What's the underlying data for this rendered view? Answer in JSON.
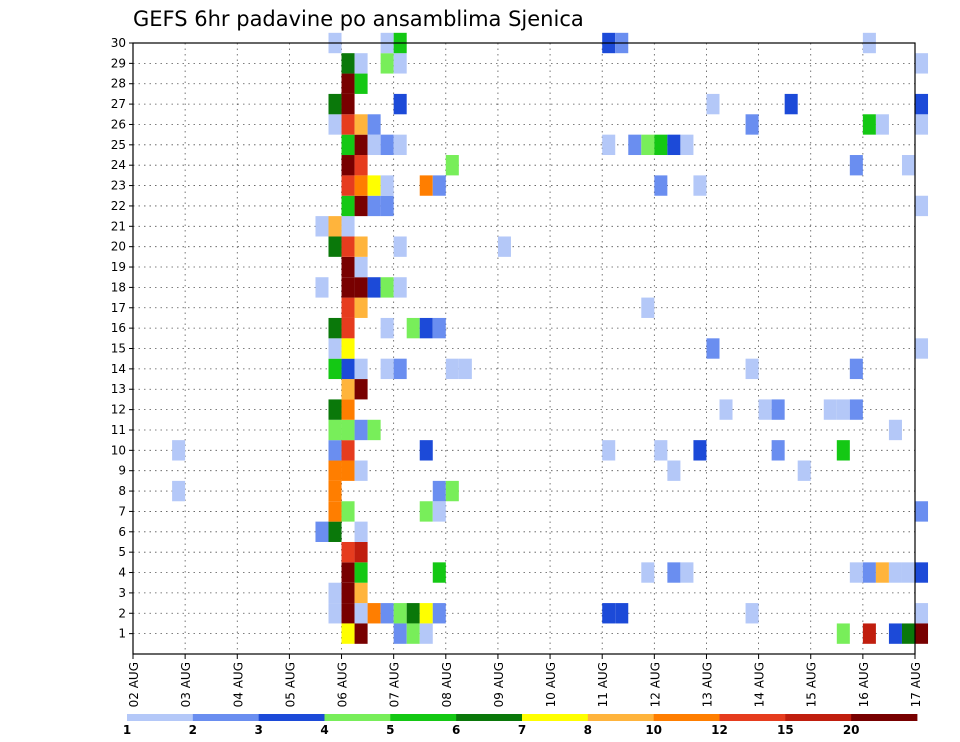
{
  "chart_data": {
    "type": "heatmap",
    "title": "GEFS 6hr padavine po ansamblima Sjenica",
    "xlabel": "",
    "ylabel": "",
    "x_start": "02 AUG 00Z",
    "x_step_hours": 6,
    "x_ticks": [
      "02 AUG",
      "03 AUG",
      "04 AUG",
      "05 AUG",
      "06 AUG",
      "07 AUG",
      "08 AUG",
      "09 AUG",
      "10 AUG",
      "11 AUG",
      "12 AUG",
      "13 AUG",
      "14 AUG",
      "15 AUG",
      "16 AUG",
      "17 AUG"
    ],
    "y_ticks": [
      "1",
      "2",
      "3",
      "4",
      "5",
      "6",
      "7",
      "8",
      "9",
      "10",
      "11",
      "12",
      "13",
      "14",
      "15",
      "16",
      "17",
      "18",
      "19",
      "20",
      "21",
      "22",
      "23",
      "24",
      "25",
      "26",
      "27",
      "28",
      "29",
      "30"
    ],
    "ylim": [
      0,
      30
    ],
    "grid": true,
    "colorbar": {
      "labels": [
        "1",
        "2",
        "3",
        "4",
        "5",
        "6",
        "7",
        "8",
        "10",
        "12",
        "15",
        "20"
      ],
      "colors": [
        "#b4c8f8",
        "#6a8ef0",
        "#1c4ad8",
        "#78ee5a",
        "#14c814",
        "#0a780a",
        "#ffff00",
        "#ffb43c",
        "#ff7e00",
        "#e63c1e",
        "#c01e0e",
        "#780000"
      ]
    },
    "cells": [
      [
        1,
        "11 AUG 00Z",
        "#1c4ad8"
      ],
      [
        1,
        "11 AUG 06Z",
        "#1c4ad8"
      ],
      [
        1,
        "05 AUG 18Z",
        "#b4c8f8"
      ],
      [
        1,
        "06 AUG 00Z",
        "#780000"
      ],
      [
        1,
        "06 AUG 06Z",
        "#b4c8f8"
      ],
      [
        1,
        "06 AUG 12Z",
        "#ff7e00"
      ],
      [
        1,
        "06 AUG 18Z",
        "#6a8ef0"
      ],
      [
        1,
        "07 AUG 00Z",
        "#78ee5a"
      ],
      [
        1,
        "07 AUG 06Z",
        "#0a780a"
      ],
      [
        1,
        "07 AUG 12Z",
        "#ffff00"
      ],
      [
        1,
        "07 AUG 18Z",
        "#6a8ef0"
      ],
      [
        1,
        "13 AUG 18Z",
        "#b4c8f8"
      ],
      [
        1,
        "17 AUG 00Z",
        "#b4c8f8"
      ],
      [
        2,
        "05 AUG 18Z",
        "#b4c8f8"
      ],
      [
        2,
        "06 AUG 00Z",
        "#780000"
      ],
      [
        2,
        "06 AUG 06Z",
        "#ffb43c"
      ],
      [
        3,
        "06 AUG 00Z",
        "#780000"
      ],
      [
        3,
        "06 AUG 06Z",
        "#14c814"
      ],
      [
        3,
        "07 AUG 18Z",
        "#14c814"
      ],
      [
        3,
        "11 AUG 18Z",
        "#b4c8f8"
      ],
      [
        3,
        "12 AUG 06Z",
        "#6a8ef0"
      ],
      [
        3,
        "12 AUG 12Z",
        "#b4c8f8"
      ],
      [
        3,
        "15 AUG 18Z",
        "#b4c8f8"
      ],
      [
        3,
        "16 AUG 00Z",
        "#6a8ef0"
      ],
      [
        3,
        "16 AUG 06Z",
        "#ffb43c"
      ],
      [
        3,
        "16 AUG 12Z",
        "#b4c8f8"
      ],
      [
        3,
        "16 AUG 18Z",
        "#b4c8f8"
      ],
      [
        3,
        "17 AUG 00Z",
        "#1c4ad8"
      ],
      [
        4,
        "06 AUG 00Z",
        "#e63c1e"
      ],
      [
        4,
        "06 AUG 06Z",
        "#c01e0e"
      ],
      [
        5,
        "05 AUG 12Z",
        "#6a8ef0"
      ],
      [
        5,
        "05 AUG 18Z",
        "#0a780a"
      ],
      [
        5,
        "06 AUG 06Z",
        "#b4c8f8"
      ],
      [
        6,
        "05 AUG 18Z",
        "#ff7e00"
      ],
      [
        6,
        "06 AUG 00Z",
        "#78ee5a"
      ],
      [
        6,
        "07 AUG 12Z",
        "#78ee5a"
      ],
      [
        6,
        "07 AUG 18Z",
        "#b4c8f8"
      ],
      [
        6,
        "17 AUG 00Z",
        "#6a8ef0"
      ],
      [
        7,
        "02 AUG 18Z",
        "#b4c8f8"
      ],
      [
        7,
        "05 AUG 18Z",
        "#ff7e00"
      ],
      [
        7,
        "07 AUG 18Z",
        "#6a8ef0"
      ],
      [
        7,
        "08 AUG 00Z",
        "#78ee5a"
      ],
      [
        8,
        "05 AUG 18Z",
        "#ff7e00"
      ],
      [
        8,
        "06 AUG 00Z",
        "#ff7e00"
      ],
      [
        8,
        "06 AUG 06Z",
        "#b4c8f8"
      ],
      [
        8,
        "12 AUG 06Z",
        "#b4c8f8"
      ],
      [
        8,
        "14 AUG 18Z",
        "#b4c8f8"
      ],
      [
        9,
        "02 AUG 18Z",
        "#b4c8f8"
      ],
      [
        9,
        "05 AUG 18Z",
        "#6a8ef0"
      ],
      [
        9,
        "06 AUG 00Z",
        "#e63c1e"
      ],
      [
        9,
        "07 AUG 12Z",
        "#1c4ad8"
      ],
      [
        9,
        "11 AUG 00Z",
        "#b4c8f8"
      ],
      [
        9,
        "12 AUG 00Z",
        "#b4c8f8"
      ],
      [
        9,
        "12 AUG 18Z",
        "#1c4ad8"
      ],
      [
        9,
        "14 AUG 06Z",
        "#6a8ef0"
      ],
      [
        9,
        "15 AUG 12Z",
        "#14c814"
      ],
      [
        10,
        "05 AUG 18Z",
        "#78ee5a"
      ],
      [
        10,
        "06 AUG 00Z",
        "#78ee5a"
      ],
      [
        10,
        "06 AUG 06Z",
        "#6a8ef0"
      ],
      [
        10,
        "06 AUG 12Z",
        "#78ee5a"
      ],
      [
        10,
        "16 AUG 12Z",
        "#b4c8f8"
      ],
      [
        11,
        "05 AUG 18Z",
        "#0a780a"
      ],
      [
        11,
        "06 AUG 00Z",
        "#ff7e00"
      ],
      [
        11,
        "13 AUG 06Z",
        "#b4c8f8"
      ],
      [
        11,
        "14 AUG 00Z",
        "#b4c8f8"
      ],
      [
        11,
        "14 AUG 06Z",
        "#6a8ef0"
      ],
      [
        11,
        "15 AUG 06Z",
        "#b4c8f8"
      ],
      [
        11,
        "15 AUG 12Z",
        "#b4c8f8"
      ],
      [
        11,
        "15 AUG 18Z",
        "#6a8ef0"
      ],
      [
        12,
        "06 AUG 00Z",
        "#ffb43c"
      ],
      [
        12,
        "06 AUG 06Z",
        "#780000"
      ],
      [
        13,
        "05 AUG 18Z",
        "#14c814"
      ],
      [
        13,
        "06 AUG 00Z",
        "#1c4ad8"
      ],
      [
        13,
        "06 AUG 06Z",
        "#b4c8f8"
      ],
      [
        13,
        "06 AUG 18Z",
        "#b4c8f8"
      ],
      [
        13,
        "07 AUG 00Z",
        "#6a8ef0"
      ],
      [
        13,
        "08 AUG 00Z",
        "#b4c8f8"
      ],
      [
        13,
        "08 AUG 06Z",
        "#b4c8f8"
      ],
      [
        13,
        "13 AUG 18Z",
        "#b4c8f8"
      ],
      [
        13,
        "15 AUG 18Z",
        "#6a8ef0"
      ],
      [
        14,
        "05 AUG 18Z",
        "#b4c8f8"
      ],
      [
        14,
        "06 AUG 00Z",
        "#ffff00"
      ],
      [
        14,
        "13 AUG 00Z",
        "#6a8ef0"
      ],
      [
        14,
        "17 AUG 00Z",
        "#b4c8f8"
      ],
      [
        15,
        "05 AUG 18Z",
        "#0a780a"
      ],
      [
        15,
        "06 AUG 00Z",
        "#e63c1e"
      ],
      [
        15,
        "06 AUG 18Z",
        "#b4c8f8"
      ],
      [
        15,
        "07 AUG 06Z",
        "#78ee5a"
      ],
      [
        15,
        "07 AUG 12Z",
        "#1c4ad8"
      ],
      [
        15,
        "07 AUG 18Z",
        "#6a8ef0"
      ],
      [
        16,
        "06 AUG 00Z",
        "#e63c1e"
      ],
      [
        16,
        "06 AUG 06Z",
        "#ffb43c"
      ],
      [
        16,
        "11 AUG 18Z",
        "#b4c8f8"
      ],
      [
        17,
        "05 AUG 12Z",
        "#b4c8f8"
      ],
      [
        17,
        "06 AUG 00Z",
        "#780000"
      ],
      [
        17,
        "06 AUG 06Z",
        "#780000"
      ],
      [
        17,
        "06 AUG 12Z",
        "#1c4ad8"
      ],
      [
        17,
        "06 AUG 18Z",
        "#78ee5a"
      ],
      [
        17,
        "07 AUG 00Z",
        "#b4c8f8"
      ],
      [
        18,
        "06 AUG 00Z",
        "#780000"
      ],
      [
        18,
        "06 AUG 06Z",
        "#b4c8f8"
      ],
      [
        19,
        "05 AUG 18Z",
        "#0a780a"
      ],
      [
        19,
        "06 AUG 00Z",
        "#e63c1e"
      ],
      [
        19,
        "06 AUG 06Z",
        "#ffb43c"
      ],
      [
        19,
        "07 AUG 00Z",
        "#b4c8f8"
      ],
      [
        19,
        "09 AUG 00Z",
        "#b4c8f8"
      ],
      [
        20,
        "05 AUG 12Z",
        "#b4c8f8"
      ],
      [
        20,
        "05 AUG 18Z",
        "#ffb43c"
      ],
      [
        20,
        "06 AUG 00Z",
        "#b4c8f8"
      ],
      [
        21,
        "06 AUG 00Z",
        "#14c814"
      ],
      [
        21,
        "06 AUG 06Z",
        "#780000"
      ],
      [
        21,
        "06 AUG 12Z",
        "#6a8ef0"
      ],
      [
        21,
        "06 AUG 18Z",
        "#6a8ef0"
      ],
      [
        21,
        "17 AUG 00Z",
        "#b4c8f8"
      ],
      [
        22,
        "06 AUG 00Z",
        "#e63c1e"
      ],
      [
        22,
        "06 AUG 06Z",
        "#ff7e00"
      ],
      [
        22,
        "06 AUG 12Z",
        "#ffff00"
      ],
      [
        22,
        "06 AUG 18Z",
        "#b4c8f8"
      ],
      [
        22,
        "07 AUG 12Z",
        "#ff7e00"
      ],
      [
        22,
        "07 AUG 18Z",
        "#6a8ef0"
      ],
      [
        22,
        "12 AUG 00Z",
        "#6a8ef0"
      ],
      [
        22,
        "12 AUG 18Z",
        "#b4c8f8"
      ],
      [
        23,
        "06 AUG 00Z",
        "#780000"
      ],
      [
        23,
        "06 AUG 06Z",
        "#e63c1e"
      ],
      [
        23,
        "08 AUG 00Z",
        "#78ee5a"
      ],
      [
        23,
        "15 AUG 18Z",
        "#6a8ef0"
      ],
      [
        23,
        "16 AUG 18Z",
        "#b4c8f8"
      ],
      [
        24,
        "06 AUG 00Z",
        "#14c814"
      ],
      [
        24,
        "06 AUG 06Z",
        "#780000"
      ],
      [
        24,
        "06 AUG 12Z",
        "#b4c8f8"
      ],
      [
        24,
        "06 AUG 18Z",
        "#6a8ef0"
      ],
      [
        24,
        "07 AUG 00Z",
        "#b4c8f8"
      ],
      [
        24,
        "11 AUG 00Z",
        "#b4c8f8"
      ],
      [
        24,
        "11 AUG 12Z",
        "#6a8ef0"
      ],
      [
        24,
        "11 AUG 18Z",
        "#78ee5a"
      ],
      [
        24,
        "12 AUG 00Z",
        "#14c814"
      ],
      [
        24,
        "12 AUG 06Z",
        "#1c4ad8"
      ],
      [
        24,
        "12 AUG 12Z",
        "#b4c8f8"
      ],
      [
        25,
        "05 AUG 18Z",
        "#b4c8f8"
      ],
      [
        25,
        "06 AUG 00Z",
        "#e63c1e"
      ],
      [
        25,
        "06 AUG 06Z",
        "#ffb43c"
      ],
      [
        25,
        "06 AUG 12Z",
        "#6a8ef0"
      ],
      [
        25,
        "13 AUG 18Z",
        "#6a8ef0"
      ],
      [
        25,
        "16 AUG 00Z",
        "#14c814"
      ],
      [
        25,
        "16 AUG 06Z",
        "#b4c8f8"
      ],
      [
        25,
        "17 AUG 00Z",
        "#b4c8f8"
      ],
      [
        26,
        "05 AUG 18Z",
        "#0a780a"
      ],
      [
        26,
        "06 AUG 00Z",
        "#780000"
      ],
      [
        26,
        "07 AUG 00Z",
        "#1c4ad8"
      ],
      [
        26,
        "13 AUG 00Z",
        "#b4c8f8"
      ],
      [
        26,
        "14 AUG 12Z",
        "#1c4ad8"
      ],
      [
        26,
        "17 AUG 00Z",
        "#1c4ad8"
      ],
      [
        27,
        "06 AUG 00Z",
        "#780000"
      ],
      [
        27,
        "06 AUG 06Z",
        "#14c814"
      ],
      [
        28,
        "06 AUG 00Z",
        "#0a780a"
      ],
      [
        28,
        "06 AUG 06Z",
        "#b4c8f8"
      ],
      [
        28,
        "06 AUG 18Z",
        "#78ee5a"
      ],
      [
        28,
        "07 AUG 00Z",
        "#b4c8f8"
      ],
      [
        28,
        "17 AUG 00Z",
        "#b4c8f8"
      ],
      [
        29,
        "05 AUG 18Z",
        "#b4c8f8"
      ],
      [
        29,
        "06 AUG 18Z",
        "#b4c8f8"
      ],
      [
        29,
        "07 AUG 00Z",
        "#14c814"
      ],
      [
        29,
        "11 AUG 00Z",
        "#1c4ad8"
      ],
      [
        29,
        "11 AUG 06Z",
        "#6a8ef0"
      ],
      [
        29,
        "16 AUG 00Z",
        "#b4c8f8"
      ],
      [
        0,
        "06 AUG 00Z",
        "#ffff00"
      ],
      [
        0,
        "06 AUG 06Z",
        "#780000"
      ],
      [
        0,
        "07 AUG 00Z",
        "#6a8ef0"
      ],
      [
        0,
        "07 AUG 06Z",
        "#78ee5a"
      ],
      [
        0,
        "07 AUG 12Z",
        "#b4c8f8"
      ],
      [
        0,
        "15 AUG 12Z",
        "#78ee5a"
      ],
      [
        0,
        "16 AUG 00Z",
        "#c01e0e"
      ],
      [
        0,
        "16 AUG 12Z",
        "#1c4ad8"
      ],
      [
        0,
        "16 AUG 18Z",
        "#0a780a"
      ],
      [
        0,
        "17 AUG 00Z",
        "#780000"
      ]
    ]
  }
}
